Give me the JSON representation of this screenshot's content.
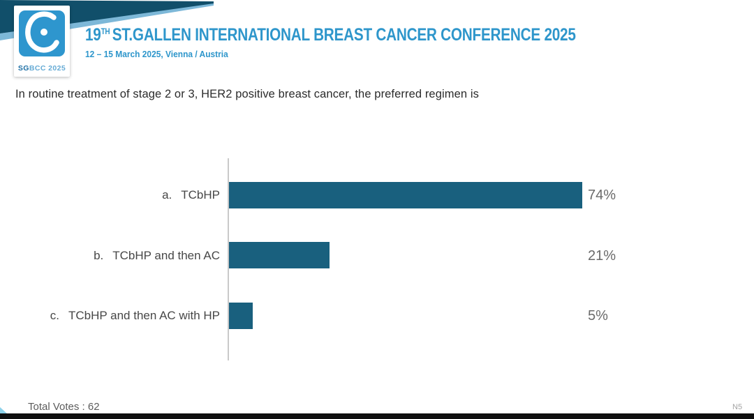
{
  "header": {
    "logo": {
      "badge_bold": "SG",
      "badge_rest": "BCC 2025"
    },
    "title_num": "19",
    "title_sup": "TH",
    "title_rest": "ST.GALLEN INTERNATIONAL BREAST CANCER CONFERENCE 2025",
    "subtitle": "12 – 15 March 2025, Vienna / Austria"
  },
  "question": "In routine treatment of stage 2 or 3, HER2 positive breast cancer, the preferred regimen is",
  "chart_data": {
    "type": "bar",
    "orientation": "horizontal",
    "option_letters": [
      "a.",
      "b.",
      "c."
    ],
    "categories": [
      "TCbHP",
      "TCbHP and then AC",
      "TCbHP and then AC with HP"
    ],
    "values": [
      74,
      21,
      5
    ],
    "value_labels": [
      "74%",
      "21%",
      "5%"
    ],
    "xlim": [
      0,
      100
    ],
    "grid": false,
    "legend": "none",
    "bar_color": "#19607E",
    "axis_line_color": "#C9C9C9"
  },
  "footer": {
    "total_votes_label": "Total Votes : 62",
    "slide_ref": "N5"
  },
  "colors": {
    "accent_blue": "#2E96CB",
    "flag_teal": "#114F6A",
    "logo_blue": "#2E96CE",
    "bar_teal": "#19607E"
  }
}
